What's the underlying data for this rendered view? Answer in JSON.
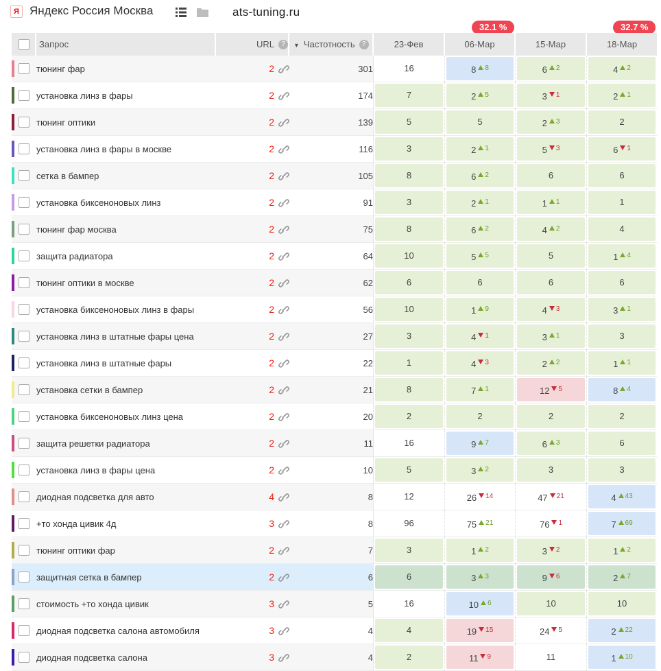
{
  "header": {
    "logo_letter": "Я",
    "region": "Яндекс Россия Москва",
    "domain": "ats-tuning.ru",
    "icons": [
      "yandex-logo-icon",
      "list-icon",
      "folder-icon"
    ]
  },
  "badges": [
    {
      "column": "06-Мар",
      "text": "32.1 %"
    },
    {
      "column": "18-Мар",
      "text": "32.7 %"
    }
  ],
  "columns": {
    "query": "Запрос",
    "url": "URL",
    "frequency": "Частотность",
    "dates": [
      "23-Фев",
      "06-Мар",
      "15-Мар",
      "18-Мар"
    ]
  },
  "colors": {
    "badge": "#ef4451",
    "cell_green": "#e6f0d6",
    "cell_blue": "#d6e6f8",
    "cell_red": "#f5d6d9",
    "trend_up": "#6a9b2a",
    "trend_down": "#c62d3a",
    "url_count": "#e21111"
  },
  "rows": [
    {
      "color": "#e57f8f",
      "query": "тюнинг фар",
      "url": "2",
      "freq": "301",
      "pos": [
        {
          "v": "16",
          "bg": "none"
        },
        {
          "v": "8",
          "t": "up",
          "d": "8",
          "bg": "b"
        },
        {
          "v": "6",
          "t": "up",
          "d": "2",
          "bg": "g"
        },
        {
          "v": "4",
          "t": "up",
          "d": "2",
          "bg": "g"
        }
      ]
    },
    {
      "color": "#4e6b3a",
      "query": "установка линз в фары",
      "url": "2",
      "freq": "174",
      "pos": [
        {
          "v": "7",
          "bg": "g"
        },
        {
          "v": "2",
          "t": "up",
          "d": "5",
          "bg": "g"
        },
        {
          "v": "3",
          "t": "down",
          "d": "1",
          "bg": "g"
        },
        {
          "v": "2",
          "t": "up",
          "d": "1",
          "bg": "g"
        }
      ]
    },
    {
      "color": "#8e1c3c",
      "query": "тюнинг оптики",
      "url": "2",
      "freq": "139",
      "pos": [
        {
          "v": "5",
          "bg": "g"
        },
        {
          "v": "5",
          "bg": "g"
        },
        {
          "v": "2",
          "t": "up",
          "d": "3",
          "bg": "g"
        },
        {
          "v": "2",
          "bg": "g"
        }
      ]
    },
    {
      "color": "#6a55b8",
      "query": "установка линз в фары в москве",
      "url": "2",
      "freq": "116",
      "pos": [
        {
          "v": "3",
          "bg": "g"
        },
        {
          "v": "2",
          "t": "up",
          "d": "1",
          "bg": "g"
        },
        {
          "v": "5",
          "t": "down",
          "d": "3",
          "bg": "g"
        },
        {
          "v": "6",
          "t": "down",
          "d": "1",
          "bg": "g"
        }
      ]
    },
    {
      "color": "#3de0c0",
      "query": "сетка в бампер",
      "url": "2",
      "freq": "105",
      "pos": [
        {
          "v": "8",
          "bg": "g"
        },
        {
          "v": "6",
          "t": "up",
          "d": "2",
          "bg": "g"
        },
        {
          "v": "6",
          "bg": "g"
        },
        {
          "v": "6",
          "bg": "g"
        }
      ]
    },
    {
      "color": "#c79be0",
      "query": "установка биксеноновых линз",
      "url": "2",
      "freq": "91",
      "pos": [
        {
          "v": "3",
          "bg": "g"
        },
        {
          "v": "2",
          "t": "up",
          "d": "1",
          "bg": "g"
        },
        {
          "v": "1",
          "t": "up",
          "d": "1",
          "bg": "g"
        },
        {
          "v": "1",
          "bg": "g"
        }
      ]
    },
    {
      "color": "#7a9e7e",
      "query": "тюнинг фар москва",
      "url": "2",
      "freq": "75",
      "pos": [
        {
          "v": "8",
          "bg": "g"
        },
        {
          "v": "6",
          "t": "up",
          "d": "2",
          "bg": "g"
        },
        {
          "v": "4",
          "t": "up",
          "d": "2",
          "bg": "g"
        },
        {
          "v": "4",
          "bg": "g"
        }
      ]
    },
    {
      "color": "#2ed39a",
      "query": "защита радиатора",
      "url": "2",
      "freq": "64",
      "pos": [
        {
          "v": "10",
          "bg": "g"
        },
        {
          "v": "5",
          "t": "up",
          "d": "5",
          "bg": "g"
        },
        {
          "v": "5",
          "bg": "g"
        },
        {
          "v": "1",
          "t": "up",
          "d": "4",
          "bg": "g"
        }
      ]
    },
    {
      "color": "#8a1aa8",
      "query": "тюнинг оптики в москве",
      "url": "2",
      "freq": "62",
      "pos": [
        {
          "v": "6",
          "bg": "g"
        },
        {
          "v": "6",
          "bg": "g"
        },
        {
          "v": "6",
          "bg": "g"
        },
        {
          "v": "6",
          "bg": "g"
        }
      ]
    },
    {
      "color": "#f6d6e4",
      "query": "установка биксеноновых линз в фары",
      "url": "2",
      "freq": "56",
      "pos": [
        {
          "v": "10",
          "bg": "g"
        },
        {
          "v": "1",
          "t": "up",
          "d": "9",
          "bg": "g"
        },
        {
          "v": "4",
          "t": "down",
          "d": "3",
          "bg": "g"
        },
        {
          "v": "3",
          "t": "up",
          "d": "1",
          "bg": "g"
        }
      ]
    },
    {
      "color": "#2e8a7e",
      "query": "установка линз в штатные фары цена",
      "url": "2",
      "freq": "27",
      "pos": [
        {
          "v": "3",
          "bg": "g"
        },
        {
          "v": "4",
          "t": "down",
          "d": "1",
          "bg": "g"
        },
        {
          "v": "3",
          "t": "up",
          "d": "1",
          "bg": "g"
        },
        {
          "v": "3",
          "bg": "g"
        }
      ]
    },
    {
      "color": "#1c2460",
      "query": "установка линз в штатные фары",
      "url": "2",
      "freq": "22",
      "pos": [
        {
          "v": "1",
          "bg": "g"
        },
        {
          "v": "4",
          "t": "down",
          "d": "3",
          "bg": "g"
        },
        {
          "v": "2",
          "t": "up",
          "d": "2",
          "bg": "g"
        },
        {
          "v": "1",
          "t": "up",
          "d": "1",
          "bg": "g"
        }
      ]
    },
    {
      "color": "#f3ea8e",
      "query": "установка сетки в бампер",
      "url": "2",
      "freq": "21",
      "pos": [
        {
          "v": "8",
          "bg": "g"
        },
        {
          "v": "7",
          "t": "up",
          "d": "1",
          "bg": "g"
        },
        {
          "v": "12",
          "t": "down",
          "d": "5",
          "bg": "r"
        },
        {
          "v": "8",
          "t": "up",
          "d": "4",
          "bg": "b"
        }
      ]
    },
    {
      "color": "#4fd184",
      "query": "установка биксеноновых линз цена",
      "url": "2",
      "freq": "20",
      "pos": [
        {
          "v": "2",
          "bg": "g"
        },
        {
          "v": "2",
          "bg": "g"
        },
        {
          "v": "2",
          "bg": "g"
        },
        {
          "v": "2",
          "bg": "g"
        }
      ]
    },
    {
      "color": "#c84e82",
      "query": "защита решетки радиатора",
      "url": "2",
      "freq": "11",
      "pos": [
        {
          "v": "16",
          "bg": "none"
        },
        {
          "v": "9",
          "t": "up",
          "d": "7",
          "bg": "b"
        },
        {
          "v": "6",
          "t": "up",
          "d": "3",
          "bg": "g"
        },
        {
          "v": "6",
          "bg": "g"
        }
      ]
    },
    {
      "color": "#4fe03c",
      "query": "установка линз в фары цена",
      "url": "2",
      "freq": "10",
      "pos": [
        {
          "v": "5",
          "bg": "g"
        },
        {
          "v": "3",
          "t": "up",
          "d": "2",
          "bg": "g"
        },
        {
          "v": "3",
          "bg": "g"
        },
        {
          "v": "3",
          "bg": "g"
        }
      ]
    },
    {
      "color": "#e08e88",
      "query": "диодная подсветка для авто",
      "url": "4",
      "freq": "8",
      "pos": [
        {
          "v": "12",
          "bg": "none"
        },
        {
          "v": "26",
          "t": "down",
          "d": "14",
          "bg": "none"
        },
        {
          "v": "47",
          "t": "down",
          "d": "21",
          "bg": "none"
        },
        {
          "v": "4",
          "t": "up",
          "d": "43",
          "bg": "b"
        }
      ]
    },
    {
      "color": "#5e1c62",
      "query": "+то хонда цивик 4д",
      "url": "3",
      "freq": "8",
      "pos": [
        {
          "v": "96",
          "bg": "none"
        },
        {
          "v": "75",
          "t": "up",
          "d": "21",
          "bg": "none"
        },
        {
          "v": "76",
          "t": "down",
          "d": "1",
          "bg": "none"
        },
        {
          "v": "7",
          "t": "up",
          "d": "69",
          "bg": "b"
        }
      ]
    },
    {
      "color": "#b3ac4a",
      "query": "тюнинг оптики фар",
      "url": "2",
      "freq": "7",
      "pos": [
        {
          "v": "3",
          "bg": "g"
        },
        {
          "v": "1",
          "t": "up",
          "d": "2",
          "bg": "g"
        },
        {
          "v": "3",
          "t": "down",
          "d": "2",
          "bg": "g"
        },
        {
          "v": "1",
          "t": "up",
          "d": "2",
          "bg": "g"
        }
      ]
    },
    {
      "color": "#8ea3c4",
      "query": "защитная сетка в бампер",
      "url": "2",
      "freq": "6",
      "selected": true,
      "pos": [
        {
          "v": "6",
          "bg": "g"
        },
        {
          "v": "3",
          "t": "up",
          "d": "3",
          "bg": "g"
        },
        {
          "v": "9",
          "t": "down",
          "d": "6",
          "bg": "g"
        },
        {
          "v": "2",
          "t": "up",
          "d": "7",
          "bg": "g"
        }
      ]
    },
    {
      "color": "#5a9e62",
      "query": "стоимость +то хонда цивик",
      "url": "3",
      "freq": "5",
      "pos": [
        {
          "v": "16",
          "bg": "none"
        },
        {
          "v": "10",
          "t": "up",
          "d": "6",
          "bg": "b"
        },
        {
          "v": "10",
          "bg": "g"
        },
        {
          "v": "10",
          "bg": "g"
        }
      ]
    },
    {
      "color": "#e02266",
      "query": "диодная подсветка салона автомобиля",
      "url": "3",
      "freq": "4",
      "pos": [
        {
          "v": "4",
          "bg": "g"
        },
        {
          "v": "19",
          "t": "down",
          "d": "15",
          "bg": "r"
        },
        {
          "v": "24",
          "t": "down",
          "d": "5",
          "bg": "none"
        },
        {
          "v": "2",
          "t": "up",
          "d": "22",
          "bg": "b"
        }
      ]
    },
    {
      "color": "#3a1aa8",
      "query": "диодная подсветка салона",
      "url": "3",
      "freq": "4",
      "pos": [
        {
          "v": "2",
          "bg": "g"
        },
        {
          "v": "11",
          "t": "down",
          "d": "9",
          "bg": "r"
        },
        {
          "v": "11",
          "bg": "none"
        },
        {
          "v": "1",
          "t": "up",
          "d": "10",
          "bg": "b"
        }
      ]
    }
  ]
}
